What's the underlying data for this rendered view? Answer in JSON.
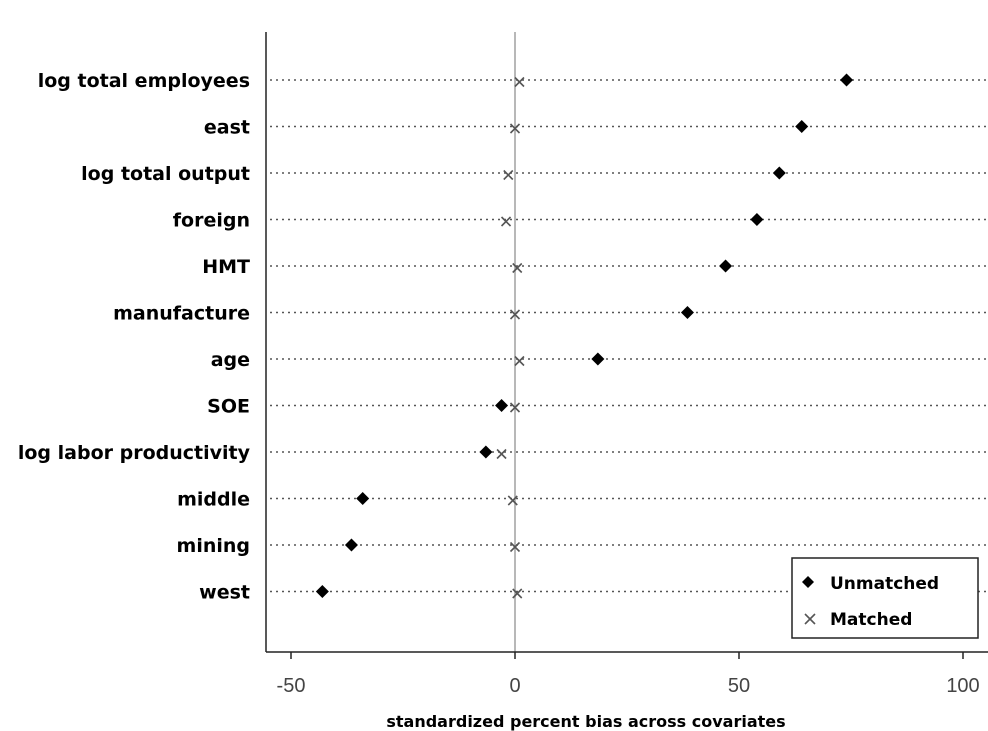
{
  "chart_data": {
    "type": "scatter",
    "orientation": "horizontal-dot-plot",
    "categories": [
      "log total employees",
      "east",
      "log total output",
      "foreign",
      "HMT",
      "manufacture",
      "age",
      "SOE",
      "log labor productivity",
      "middle",
      "mining",
      "west"
    ],
    "series": [
      {
        "name": "Unmatched",
        "marker": "diamond",
        "color": "#000000",
        "values": [
          74,
          64,
          59,
          54,
          47,
          38.5,
          18.5,
          -3,
          -6.5,
          -34,
          -36.5,
          -43
        ]
      },
      {
        "name": "Matched",
        "marker": "cross",
        "color": "#555555",
        "values": [
          1,
          0,
          -1.5,
          -2,
          0.5,
          0,
          1,
          0,
          -3,
          -0.5,
          0,
          0.5
        ]
      }
    ],
    "xlabel": "standardized percent bias across covariates",
    "xlim": [
      -56,
      105
    ],
    "xticks": [
      -50,
      0,
      50,
      100
    ],
    "xtick_labels": [
      "-50",
      "0",
      "50",
      "100"
    ],
    "zero_line": 0,
    "grid": "dotted horizontal per category",
    "legend_position": "bottom-right"
  }
}
